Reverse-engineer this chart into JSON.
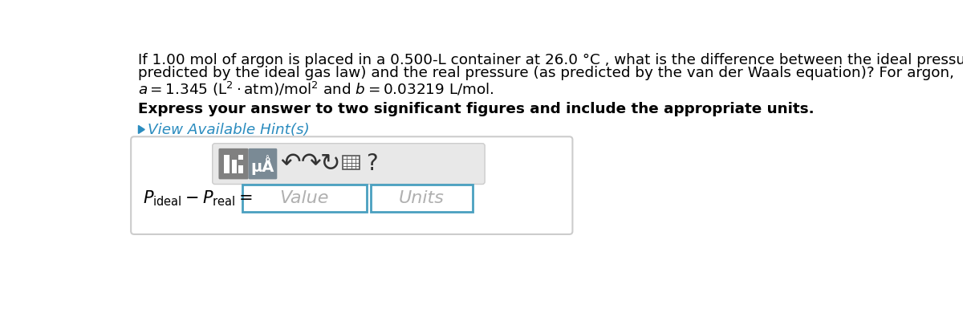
{
  "bg_color": "#ffffff",
  "text_color": "#000000",
  "blue_link_color": "#2b8cbf",
  "bold_line": "Express your answer to two significant figures and include the appropriate units.",
  "hint_text": "View Available Hint(s)",
  "value_placeholder": "Value",
  "units_placeholder": "Units",
  "box_border_color": "#4aa0c0",
  "toolbar_bg": "#e8e8e8",
  "toolbar_border": "#bbbbbb",
  "icon1_bg": "#808080",
  "icon2_bg": "#7a8a95",
  "outer_box_border": "#cccccc",
  "figsize": [
    12.0,
    4.05
  ],
  "dpi": 100
}
